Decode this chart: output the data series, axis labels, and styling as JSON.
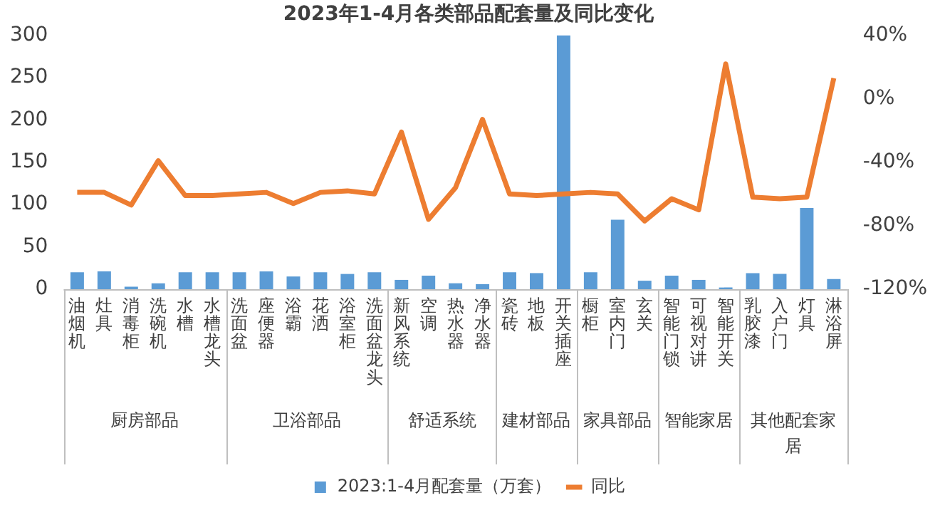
{
  "chart_data": {
    "type": "bar",
    "title": "2023年1-4月各类部品配套量及同比变化",
    "categories": [
      "油烟机",
      "灶具",
      "消毒柜",
      "洗碗机",
      "水槽",
      "水槽龙头",
      "洗面盆",
      "座便器",
      "浴霸",
      "花洒",
      "浴室柜",
      "洗面盆龙头",
      "新风系统",
      "空调",
      "热水器",
      "净水器",
      "瓷砖",
      "地板",
      "开关插座",
      "橱柜",
      "室内门",
      "玄关",
      "智能门锁",
      "可视对讲",
      "智能开关",
      "乳胶漆",
      "入户门",
      "灯具",
      "淋浴屏"
    ],
    "series": [
      {
        "name": "2023:1-4月配套量（万套）",
        "color": "#5b9bd5",
        "values": [
          20,
          21,
          3,
          7,
          20,
          20,
          20,
          21,
          15,
          20,
          18,
          20,
          11,
          16,
          7,
          6,
          20,
          19,
          300,
          20,
          82,
          10,
          16,
          11,
          2,
          19,
          18,
          96,
          12
        ]
      },
      {
        "name": "同比",
        "type": "line",
        "axis": "y2",
        "color": "#ed7d31",
        "values": [
          -59,
          -59,
          -67,
          -39,
          -61,
          -61,
          -60,
          -59,
          -66,
          -59,
          -58,
          -60,
          -21,
          -76,
          -56,
          -13,
          -60,
          -61,
          -60,
          -59,
          -60,
          -77,
          -63,
          -70,
          22,
          -62,
          -63,
          -62,
          13
        ]
      }
    ],
    "ylim": [
      0,
      300
    ],
    "yticks": [
      0,
      50,
      100,
      150,
      200,
      250,
      300
    ],
    "y2lim": [
      -120,
      40
    ],
    "y2ticks": [
      {
        "value": -120,
        "label": "-120%"
      },
      {
        "value": -80,
        "label": "-80%"
      },
      {
        "value": -40,
        "label": "-40%"
      },
      {
        "value": 0,
        "label": "0%"
      },
      {
        "value": 40,
        "label": "40%"
      }
    ],
    "marker": "none",
    "legend": "bottom",
    "annotations": [
      "厨房部品",
      "卫浴部品",
      "舒适系统",
      "建材部品",
      "家具部品",
      "智能家居",
      "其他配套家居"
    ]
  }
}
